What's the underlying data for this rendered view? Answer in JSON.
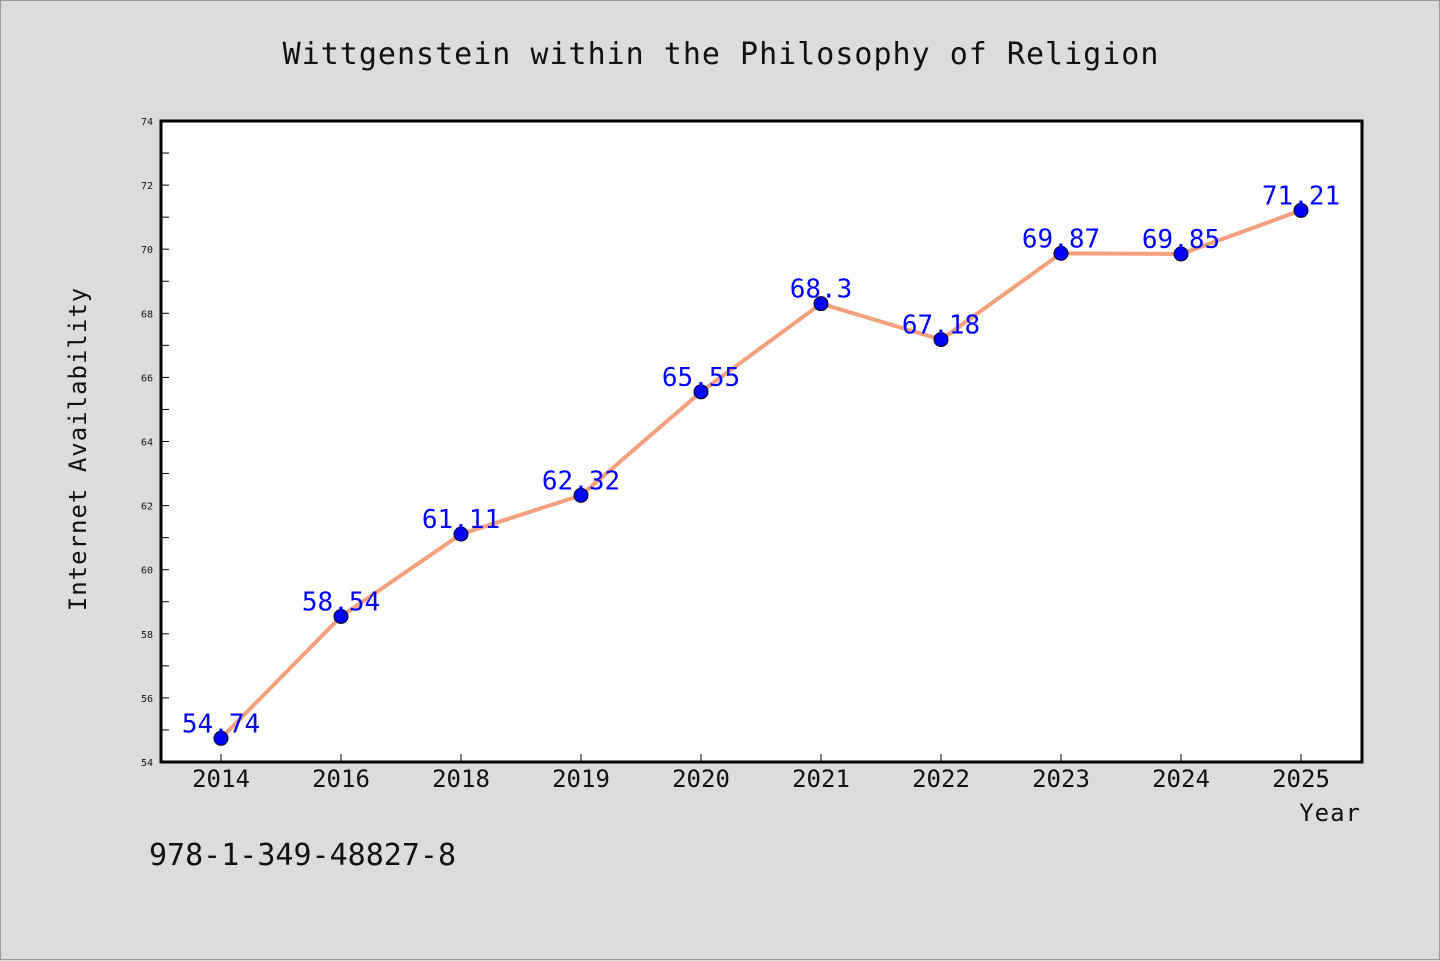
{
  "chart_data": {
    "type": "line",
    "title": "Wittgenstein within the Philosophy of Religion",
    "xlabel": "Year",
    "ylabel": "Internet Availability",
    "categories": [
      "2014",
      "2016",
      "2018",
      "2019",
      "2020",
      "2021",
      "2022",
      "2023",
      "2024",
      "2025"
    ],
    "series": [
      {
        "values": [
          54.74,
          58.54,
          61.11,
          62.32,
          65.55,
          68.3,
          67.18,
          69.87,
          69.85,
          71.21
        ],
        "labels": [
          "54.74",
          "58.54",
          "61.11",
          "62.32",
          "65.55",
          "68.3",
          "67.18",
          "69.87",
          "69.85",
          "71.21"
        ],
        "line_color": "#f4a07c",
        "marker_color": "#0000ff"
      }
    ],
    "ylim": [
      54,
      74
    ],
    "yticks": [
      "54",
      "56",
      "58",
      "60",
      "62",
      "64",
      "66",
      "68",
      "70",
      "72",
      "74"
    ],
    "grid": false,
    "footnote": "978-1-349-48827-8"
  }
}
